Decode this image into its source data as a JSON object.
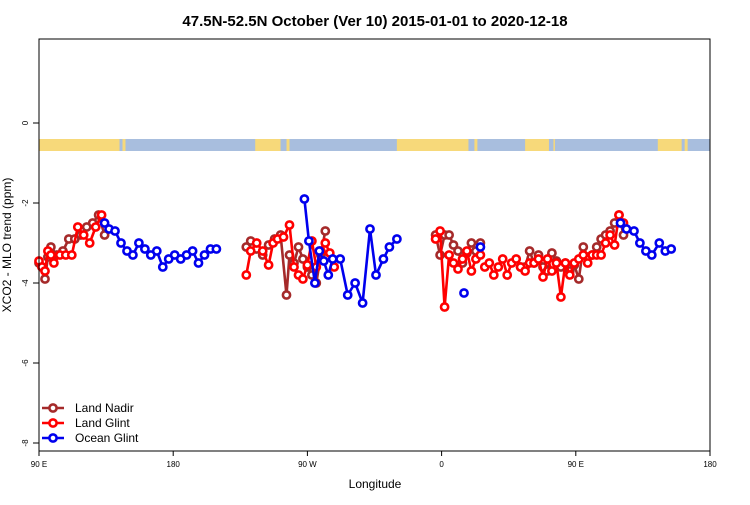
{
  "chart_data": {
    "type": "line",
    "title": "47.5N-52.5N October (Ver 10)   2015-01-01 to 2020-12-18",
    "xlabel": "Longitude",
    "ylabel": "XCO2 - MLO trend (ppm)",
    "xlim": [
      90,
      540
    ],
    "ylim": [
      -8.2,
      2.1
    ],
    "x_ticks": [
      {
        "value": 90,
        "label": "90 E"
      },
      {
        "value": 180,
        "label": "180"
      },
      {
        "value": 270,
        "label": "90 W"
      },
      {
        "value": 360,
        "label": "0"
      },
      {
        "value": 450,
        "label": "90 E"
      },
      {
        "value": 540,
        "label": "180"
      }
    ],
    "y_ticks": [
      {
        "value": 0,
        "label": "0"
      },
      {
        "value": -2,
        "label": "-2"
      },
      {
        "value": -4,
        "label": "-4"
      },
      {
        "value": -6,
        "label": "-6"
      },
      {
        "value": -8,
        "label": "-8"
      }
    ],
    "grid": false,
    "legend_position": "bottom-left",
    "surface_band": {
      "y_range": [
        -0.7,
        -0.4
      ],
      "land_color": "#f7d97a",
      "ocean_color": "#a8bede",
      "land_segments": [
        [
          90,
          144
        ],
        [
          146,
          148
        ],
        [
          235,
          252
        ],
        [
          256,
          258
        ],
        [
          330,
          378
        ],
        [
          382,
          384
        ],
        [
          416,
          432
        ],
        [
          435,
          436
        ],
        [
          505,
          521
        ],
        [
          523,
          525
        ]
      ]
    },
    "series": [
      {
        "name": "Land Nadir",
        "color": "#a52a2a",
        "segments": [
          [
            [
              90,
              -3.5
            ],
            [
              92,
              -3.6
            ],
            [
              94,
              -3.9
            ],
            [
              96,
              -3.35
            ],
            [
              98,
              -3.1
            ],
            [
              102,
              -3.3
            ],
            [
              106,
              -3.2
            ],
            [
              110,
              -2.9
            ],
            [
              114,
              -2.9
            ],
            [
              118,
              -2.8
            ],
            [
              122,
              -2.6
            ],
            [
              126,
              -2.5
            ],
            [
              130,
              -2.3
            ],
            [
              134,
              -2.8
            ]
          ],
          [
            [
              229,
              -3.1
            ],
            [
              232,
              -2.95
            ],
            [
              236,
              -3.15
            ],
            [
              240,
              -3.3
            ],
            [
              244,
              -3.05
            ],
            [
              248,
              -2.9
            ],
            [
              252,
              -2.8
            ],
            [
              256,
              -4.3
            ],
            [
              258,
              -3.3
            ],
            [
              261,
              -3.5
            ],
            [
              264,
              -3.1
            ],
            [
              267,
              -3.4
            ],
            [
              270,
              -3.6
            ],
            [
              273,
              -3.8
            ],
            [
              276,
              -4.0
            ],
            [
              279,
              -3.3
            ],
            [
              282,
              -2.7
            ]
          ],
          [
            [
              356,
              -2.8
            ],
            [
              359,
              -3.3
            ],
            [
              362,
              -2.8
            ],
            [
              365,
              -2.8
            ],
            [
              368,
              -3.05
            ],
            [
              371,
              -3.2
            ],
            [
              374,
              -3.5
            ],
            [
              377,
              -3.25
            ],
            [
              380,
              -3.0
            ],
            [
              383,
              -3.2
            ],
            [
              386,
              -3.0
            ]
          ],
          [
            [
              413,
              -3.6
            ],
            [
              416,
              -3.6
            ],
            [
              419,
              -3.2
            ],
            [
              422,
              -3.5
            ],
            [
              425,
              -3.3
            ],
            [
              428,
              -3.6
            ],
            [
              431,
              -3.7
            ],
            [
              434,
              -3.25
            ],
            [
              437,
              -3.45
            ],
            [
              440,
              -3.6
            ],
            [
              443,
              -3.5
            ],
            [
              446,
              -3.7
            ],
            [
              449,
              -3.55
            ],
            [
              452,
              -3.9
            ],
            [
              455,
              -3.1
            ],
            [
              458,
              -3.35
            ],
            [
              461,
              -3.3
            ],
            [
              464,
              -3.1
            ],
            [
              467,
              -2.9
            ],
            [
              470,
              -2.8
            ],
            [
              473,
              -2.7
            ],
            [
              476,
              -2.5
            ],
            [
              479,
              -2.3
            ],
            [
              482,
              -2.8
            ]
          ]
        ]
      },
      {
        "name": "Land Glint",
        "color": "#ff0000",
        "segments": [
          [
            [
              90,
              -3.45
            ],
            [
              92,
              -3.6
            ],
            [
              94,
              -3.7
            ],
            [
              96,
              -3.2
            ],
            [
              98,
              -3.3
            ],
            [
              100,
              -3.5
            ],
            [
              104,
              -3.3
            ],
            [
              108,
              -3.3
            ],
            [
              112,
              -3.3
            ],
            [
              116,
              -2.6
            ],
            [
              120,
              -2.8
            ],
            [
              124,
              -3.0
            ],
            [
              128,
              -2.6
            ],
            [
              132,
              -2.3
            ]
          ],
          [
            [
              229,
              -3.8
            ],
            [
              232,
              -3.2
            ],
            [
              236,
              -3.0
            ],
            [
              240,
              -3.2
            ],
            [
              244,
              -3.55
            ],
            [
              247,
              -3.0
            ],
            [
              250,
              -2.9
            ],
            [
              254,
              -2.85
            ],
            [
              258,
              -2.55
            ],
            [
              261,
              -3.6
            ],
            [
              264,
              -3.8
            ],
            [
              267,
              -3.9
            ],
            [
              270,
              -3.55
            ],
            [
              273,
              -2.95
            ],
            [
              276,
              -3.6
            ],
            [
              279,
              -3.2
            ],
            [
              282,
              -3.0
            ],
            [
              285,
              -3.25
            ],
            [
              288,
              -3.6
            ]
          ],
          [
            [
              356,
              -2.9
            ],
            [
              359,
              -2.7
            ],
            [
              362,
              -4.6
            ],
            [
              365,
              -3.3
            ],
            [
              368,
              -3.5
            ],
            [
              371,
              -3.65
            ],
            [
              374,
              -3.4
            ],
            [
              377,
              -3.2
            ],
            [
              380,
              -3.7
            ],
            [
              383,
              -3.4
            ],
            [
              386,
              -3.3
            ]
          ],
          [
            [
              389,
              -3.6
            ],
            [
              392,
              -3.5
            ],
            [
              395,
              -3.8
            ],
            [
              398,
              -3.6
            ],
            [
              401,
              -3.4
            ],
            [
              404,
              -3.8
            ],
            [
              407,
              -3.5
            ],
            [
              410,
              -3.4
            ],
            [
              413,
              -3.6
            ],
            [
              416,
              -3.7
            ],
            [
              419,
              -3.5
            ],
            [
              422,
              -3.5
            ],
            [
              425,
              -3.4
            ],
            [
              428,
              -3.85
            ],
            [
              431,
              -3.4
            ],
            [
              434,
              -3.7
            ],
            [
              437,
              -3.5
            ],
            [
              440,
              -4.35
            ],
            [
              443,
              -3.5
            ],
            [
              446,
              -3.8
            ],
            [
              449,
              -3.5
            ],
            [
              452,
              -3.4
            ],
            [
              455,
              -3.3
            ],
            [
              458,
              -3.5
            ],
            [
              461,
              -3.3
            ],
            [
              464,
              -3.3
            ],
            [
              467,
              -3.3
            ],
            [
              470,
              -3.0
            ],
            [
              473,
              -2.8
            ],
            [
              476,
              -3.05
            ],
            [
              479,
              -2.3
            ],
            [
              482,
              -2.5
            ]
          ]
        ]
      },
      {
        "name": "Ocean Glint",
        "color": "#0000ee",
        "segments": [
          [
            [
              134,
              -2.5
            ],
            [
              137,
              -2.65
            ],
            [
              141,
              -2.7
            ],
            [
              145,
              -3.0
            ],
            [
              149,
              -3.2
            ],
            [
              153,
              -3.3
            ],
            [
              157,
              -3.0
            ],
            [
              161,
              -3.15
            ],
            [
              165,
              -3.3
            ],
            [
              169,
              -3.2
            ],
            [
              173,
              -3.6
            ],
            [
              177,
              -3.4
            ],
            [
              181,
              -3.3
            ],
            [
              185,
              -3.4
            ],
            [
              189,
              -3.3
            ],
            [
              193,
              -3.2
            ],
            [
              197,
              -3.5
            ],
            [
              201,
              -3.3
            ],
            [
              205,
              -3.15
            ],
            [
              209,
              -3.15
            ]
          ],
          [
            [
              268,
              -1.9
            ],
            [
              271,
              -2.95
            ],
            [
              275,
              -4.0
            ],
            [
              278,
              -3.2
            ],
            [
              281,
              -3.45
            ],
            [
              284,
              -3.8
            ],
            [
              287,
              -3.4
            ],
            [
              292,
              -3.4
            ],
            [
              297,
              -4.3
            ],
            [
              302,
              -4.0
            ],
            [
              307,
              -4.5
            ],
            [
              312,
              -2.65
            ],
            [
              316,
              -3.8
            ],
            [
              321,
              -3.4
            ],
            [
              325,
              -3.1
            ],
            [
              330,
              -2.9
            ]
          ],
          [
            [
              386,
              -3.1
            ]
          ],
          [
            [
              375,
              -4.25
            ]
          ],
          [
            [
              480,
              -2.5
            ],
            [
              484,
              -2.65
            ],
            [
              489,
              -2.7
            ],
            [
              493,
              -3.0
            ],
            [
              497,
              -3.2
            ],
            [
              501,
              -3.3
            ],
            [
              506,
              -3.0
            ],
            [
              510,
              -3.2
            ],
            [
              514,
              -3.15
            ]
          ]
        ]
      }
    ]
  }
}
